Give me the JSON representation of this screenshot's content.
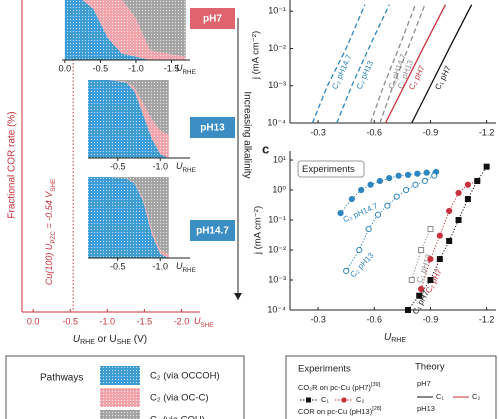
{
  "left_panel": {
    "y_label": "Fractional COR rate (%)",
    "pzc": {
      "value": -0.54,
      "parts": [
        "Cu(100) U",
        "PZC",
        " = -0.54 V",
        "SHE"
      ]
    },
    "alkalinity_label": "Increasing alkalinity",
    "she_axis": {
      "xlim": [
        0.15,
        -2.25
      ],
      "xticks": [
        {
          "value": 0,
          "label": "0.0"
        },
        -0.5,
        {
          "value": -1,
          "label": "-1.0"
        },
        -1.5,
        {
          "value": -2,
          "label": "-2.0"
        }
      ],
      "unit": [
        "U",
        "SHE"
      ],
      "title": [
        "U",
        "RHE",
        " or ",
        "U",
        "SHE",
        " (V)"
      ]
    }
  },
  "chart_data": [
    {
      "type": "stacked_area",
      "label": "pH7",
      "label_color": "#e0646e",
      "xlim": [
        0.04,
        -1.76
      ],
      "ylim": [
        0,
        100
      ],
      "xticks": [
        {
          "value": 0,
          "label": "0.0"
        },
        -0.5,
        {
          "value": -1,
          "label": "-1.0"
        },
        -1.5
      ],
      "x_unit": [
        "U",
        "RHE"
      ],
      "x": [
        0,
        -0.2,
        -0.4,
        -0.6,
        -0.8,
        -1.0,
        -1.2,
        -1.7
      ],
      "series": [
        {
          "color": "#3a9bd5",
          "values": [
            100,
            98,
            80,
            35,
            10,
            5,
            0,
            0
          ]
        },
        {
          "color": "#f2a3aa",
          "values": [
            0,
            2,
            20,
            65,
            85,
            60,
            15,
            5
          ]
        },
        {
          "color": "#a3a3a3",
          "values": [
            0,
            0,
            0,
            0,
            5,
            35,
            85,
            95
          ]
        }
      ]
    },
    {
      "type": "stacked_area",
      "label": "pH13",
      "label_color": "#3a8ec4",
      "xlim": [
        -0.15,
        -1.35
      ],
      "ylim": [
        0,
        100
      ],
      "xticks": [
        -0.5,
        {
          "value": -1,
          "label": "-1.0"
        }
      ],
      "x_unit": [
        "U",
        "RHE"
      ],
      "x": [
        -0.15,
        -0.4,
        -0.6,
        -0.7,
        -0.8,
        -0.9,
        -1.0,
        -1.1
      ],
      "series": [
        {
          "color": "#3a9bd5",
          "values": [
            100,
            100,
            97,
            85,
            55,
            25,
            5,
            0
          ]
        },
        {
          "color": "#f2a3aa",
          "values": [
            0,
            0,
            1,
            5,
            15,
            25,
            30,
            30
          ]
        },
        {
          "color": "#a3a3a3",
          "values": [
            0,
            0,
            2,
            10,
            30,
            50,
            65,
            70
          ]
        }
      ]
    },
    {
      "type": "stacked_area",
      "label": "pH14.7",
      "label_color": "#3a8ec4",
      "xlim": [
        -0.15,
        -1.35
      ],
      "ylim": [
        0,
        100
      ],
      "xticks": [
        -0.5,
        {
          "value": -1,
          "label": "-1.0"
        }
      ],
      "x_unit": [
        "U",
        "RHE"
      ],
      "x": [
        -0.15,
        -0.4,
        -0.6,
        -0.7,
        -0.8,
        -0.9,
        -1.0,
        -1.1
      ],
      "series": [
        {
          "color": "#3a9bd5",
          "values": [
            100,
            100,
            98,
            92,
            70,
            30,
            5,
            0
          ]
        },
        {
          "color": "#f2a3aa",
          "values": [
            0,
            0,
            0,
            1,
            3,
            5,
            5,
            5
          ]
        },
        {
          "color": "#a3a3a3",
          "values": [
            0,
            0,
            2,
            7,
            27,
            65,
            90,
            95
          ]
        }
      ]
    },
    {
      "type": "line",
      "log_y": true,
      "y_label": "j (mA cm⁻²)",
      "xlim": [
        -0.15,
        -1.25
      ],
      "ylim": [
        0.0001,
        0.2
      ],
      "xticks": [
        -0.3,
        -0.6,
        -0.9,
        -1.2
      ],
      "yticks": [
        {
          "value": 0.0001,
          "label": "10⁻⁴"
        },
        {
          "value": 0.001,
          "label": "10⁻³"
        },
        {
          "value": 0.01,
          "label": "10⁻²"
        },
        {
          "value": 0.1,
          "label": "10⁻¹"
        }
      ],
      "series": [
        {
          "name": "C₂ pH14.7",
          "color": "#2e86c1",
          "dashed": true,
          "x": [
            -0.27,
            -0.35,
            -0.45,
            -0.55
          ],
          "values": [
            0.0001,
            0.001,
            0.01,
            0.15
          ]
        },
        {
          "name": "C₂ pH13",
          "color": "#2e86c1",
          "dashed": true,
          "x": [
            -0.4,
            -0.48,
            -0.57,
            -0.68
          ],
          "values": [
            0.0001,
            0.001,
            0.01,
            0.15
          ]
        },
        {
          "name": "C₁ pH14.7",
          "color": "#8c8c8c",
          "dashed": true,
          "x": [
            -0.58,
            -0.65,
            -0.73,
            -0.82
          ],
          "values": [
            0.0001,
            0.001,
            0.01,
            0.15
          ]
        },
        {
          "name": "C₁ pH13",
          "color": "#8c8c8c",
          "dashed": true,
          "x": [
            -0.63,
            -0.7,
            -0.78,
            -0.87
          ],
          "values": [
            0.0001,
            0.001,
            0.01,
            0.15
          ]
        },
        {
          "name": "C₂ pH7",
          "color": "#c8323c",
          "dashed": false,
          "x": [
            -0.66,
            -0.76,
            -0.86,
            -0.98
          ],
          "values": [
            0.0001,
            0.001,
            0.01,
            0.15
          ]
        },
        {
          "name": "C₁ pH7",
          "color": "#111111",
          "dashed": false,
          "x": [
            -0.8,
            -0.9,
            -1.0,
            -1.12
          ],
          "values": [
            0.0001,
            0.001,
            0.01,
            0.15
          ]
        }
      ]
    },
    {
      "type": "scatter",
      "log_y": true,
      "panel_label": "c",
      "annotation": "Experiments",
      "y_label": "j (mA cm⁻²)",
      "x_label": [
        "U",
        "RHE"
      ],
      "xlim": [
        -0.15,
        -1.25
      ],
      "ylim": [
        0.0001,
        20
      ],
      "xticks": [
        -0.3,
        -0.6,
        -0.9,
        -1.2
      ],
      "yticks": [
        {
          "value": 0.0001,
          "label": "10⁻⁴"
        },
        {
          "value": 0.001,
          "label": "10⁻³"
        },
        {
          "value": 0.01,
          "label": "10⁻²"
        },
        {
          "value": 0.1,
          "label": "10⁻¹"
        },
        {
          "value": 1,
          "label": "10⁰"
        },
        {
          "value": 10,
          "label": "10¹"
        }
      ],
      "series": [
        {
          "name": "C₂ pH14.7",
          "color": "#2e86c1",
          "marker": "circle",
          "filled": true,
          "x": [
            -0.42,
            -0.48,
            -0.53,
            -0.58,
            -0.63,
            -0.68,
            -0.73,
            -0.78,
            -0.83,
            -0.88,
            -0.93
          ],
          "values": [
            0.17,
            0.5,
            1,
            1.5,
            2,
            2.5,
            3,
            3.2,
            3.5,
            3.8,
            4
          ]
        },
        {
          "name": "C₂ pH13",
          "color": "#2e86c1",
          "marker": "circle",
          "filled": false,
          "x": [
            -0.45,
            -0.52,
            -0.57,
            -0.62,
            -0.67,
            -0.72,
            -0.77,
            -0.82,
            -0.87,
            -0.92
          ],
          "values": [
            0.002,
            0.01,
            0.05,
            0.15,
            0.3,
            0.6,
            1,
            1.5,
            2,
            3
          ]
        },
        {
          "name": "C₁ pH13",
          "color": "#8c8c8c",
          "marker": "square",
          "filled": false,
          "x": [
            -0.8,
            -0.85,
            -0.9
          ],
          "values": [
            0.001,
            0.01,
            0.05
          ]
        },
        {
          "name": "C₂ pH7",
          "color": "#c8323c",
          "marker": "circle",
          "filled": true,
          "x": [
            -0.85,
            -0.9,
            -0.95,
            -1.0,
            -1.05,
            -1.1,
            -1.15
          ],
          "values": [
            0.0005,
            0.005,
            0.03,
            0.2,
            0.8,
            1.5,
            2
          ]
        },
        {
          "name": "C₁ pH7",
          "color": "#111111",
          "marker": "square",
          "filled": true,
          "x": [
            -0.78,
            -0.84,
            -0.9,
            -0.95,
            -1.0,
            -1.05,
            -1.1,
            -1.15,
            -1.2
          ],
          "values": [
            0.0001,
            0.0003,
            0.001,
            0.005,
            0.02,
            0.1,
            0.5,
            2,
            6
          ]
        }
      ]
    }
  ],
  "pathways": {
    "title": "Pathways",
    "items": [
      {
        "label": "C₂ (via OCCOH)",
        "color": "#3a9bd5"
      },
      {
        "label": "C₂ (via OC-C)",
        "color": "#f2a3aa"
      },
      {
        "label": "C₁ (via COH)",
        "color": "#a3a3a3"
      }
    ]
  },
  "legend": {
    "experiments_title": "Experiments",
    "theory_title": "Theory",
    "exp_groups": [
      {
        "title": "CO₂R on pc-Cu (pH7)",
        "ref": "[39]",
        "items": [
          "C₁",
          "C₂"
        ]
      },
      {
        "title": "COR on pc-Cu (pH13)",
        "ref": "[28]"
      }
    ],
    "theory_groups": [
      {
        "title": "pH7",
        "items": [
          "C₁",
          "C₂"
        ]
      },
      {
        "title": "pH13"
      }
    ]
  }
}
